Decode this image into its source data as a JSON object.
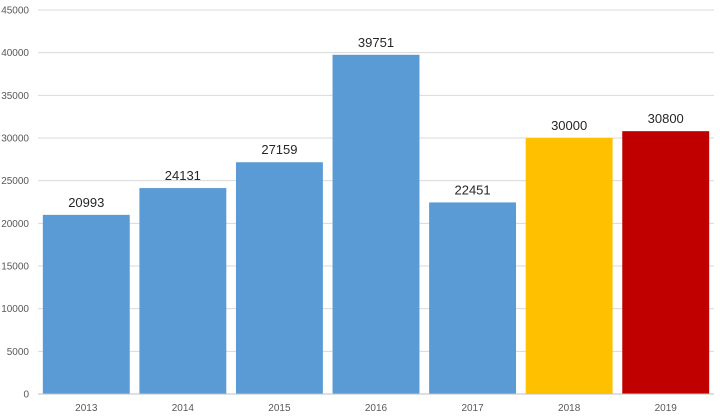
{
  "chart_data": {
    "type": "bar",
    "title": "",
    "xlabel": "",
    "ylabel": "",
    "categories": [
      "2013",
      "2014",
      "2015",
      "2016",
      "2017",
      "2018",
      "2019"
    ],
    "values": [
      20993,
      24131,
      27159,
      39751,
      22451,
      30000,
      30800
    ],
    "bar_colors": [
      "#5b9bd5",
      "#5b9bd5",
      "#5b9bd5",
      "#5b9bd5",
      "#5b9bd5",
      "#ffc000",
      "#c00000"
    ],
    "ylim": [
      0,
      45000
    ],
    "yticks": [
      0,
      5000,
      10000,
      15000,
      20000,
      25000,
      30000,
      35000,
      40000,
      45000
    ],
    "grid": true,
    "data_labels": true,
    "legend": "none"
  }
}
